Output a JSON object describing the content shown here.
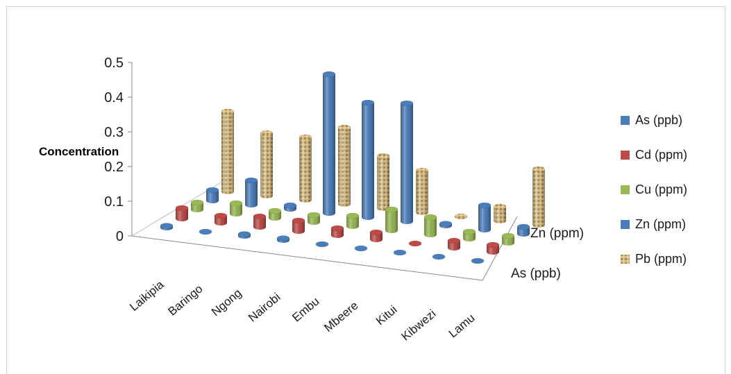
{
  "chart_data": {
    "type": "bar",
    "subtype": "3d-cylinder",
    "title": "",
    "ylabel": "Concentration",
    "ylim": [
      0,
      0.5
    ],
    "yticks": [
      "0",
      "0.1",
      "0.2",
      "0.3",
      "0.4",
      "0.5"
    ],
    "categories": [
      "Laikipia",
      "Baringo",
      "Ngong",
      "Nairobi",
      "Embu",
      "Mbeere",
      "Kitui",
      "Kibwezi",
      "Lamu"
    ],
    "depth_labels": [
      "As (ppb)",
      "Zn (ppm)"
    ],
    "grid": false,
    "legend_position": "right",
    "series": [
      {
        "name": "As (ppb)",
        "color": "#4a7ebb",
        "values": [
          0.005,
          0.0,
          0.005,
          0.005,
          0.0,
          0.0,
          0.0,
          0.0,
          0.0
        ]
      },
      {
        "name": "Cd (ppm)",
        "color": "#be4b48",
        "values": [
          0.03,
          0.02,
          0.03,
          0.03,
          0.02,
          0.02,
          0.0,
          0.02,
          0.02
        ]
      },
      {
        "name": "Cu (ppm)",
        "color": "#98b954",
        "values": [
          0.02,
          0.03,
          0.02,
          0.02,
          0.03,
          0.06,
          0.05,
          0.02,
          0.02
        ]
      },
      {
        "name": "Zn (ppm)",
        "color": "#4a7ebb",
        "values": [
          0.03,
          0.07,
          0.01,
          0.4,
          0.33,
          0.34,
          0.005,
          0.07,
          0.02
        ]
      },
      {
        "name": "Pb (ppm)",
        "color": "#c9a86a",
        "values": [
          0.23,
          0.18,
          0.18,
          0.22,
          0.15,
          0.12,
          0.0,
          0.04,
          0.16
        ]
      }
    ]
  }
}
